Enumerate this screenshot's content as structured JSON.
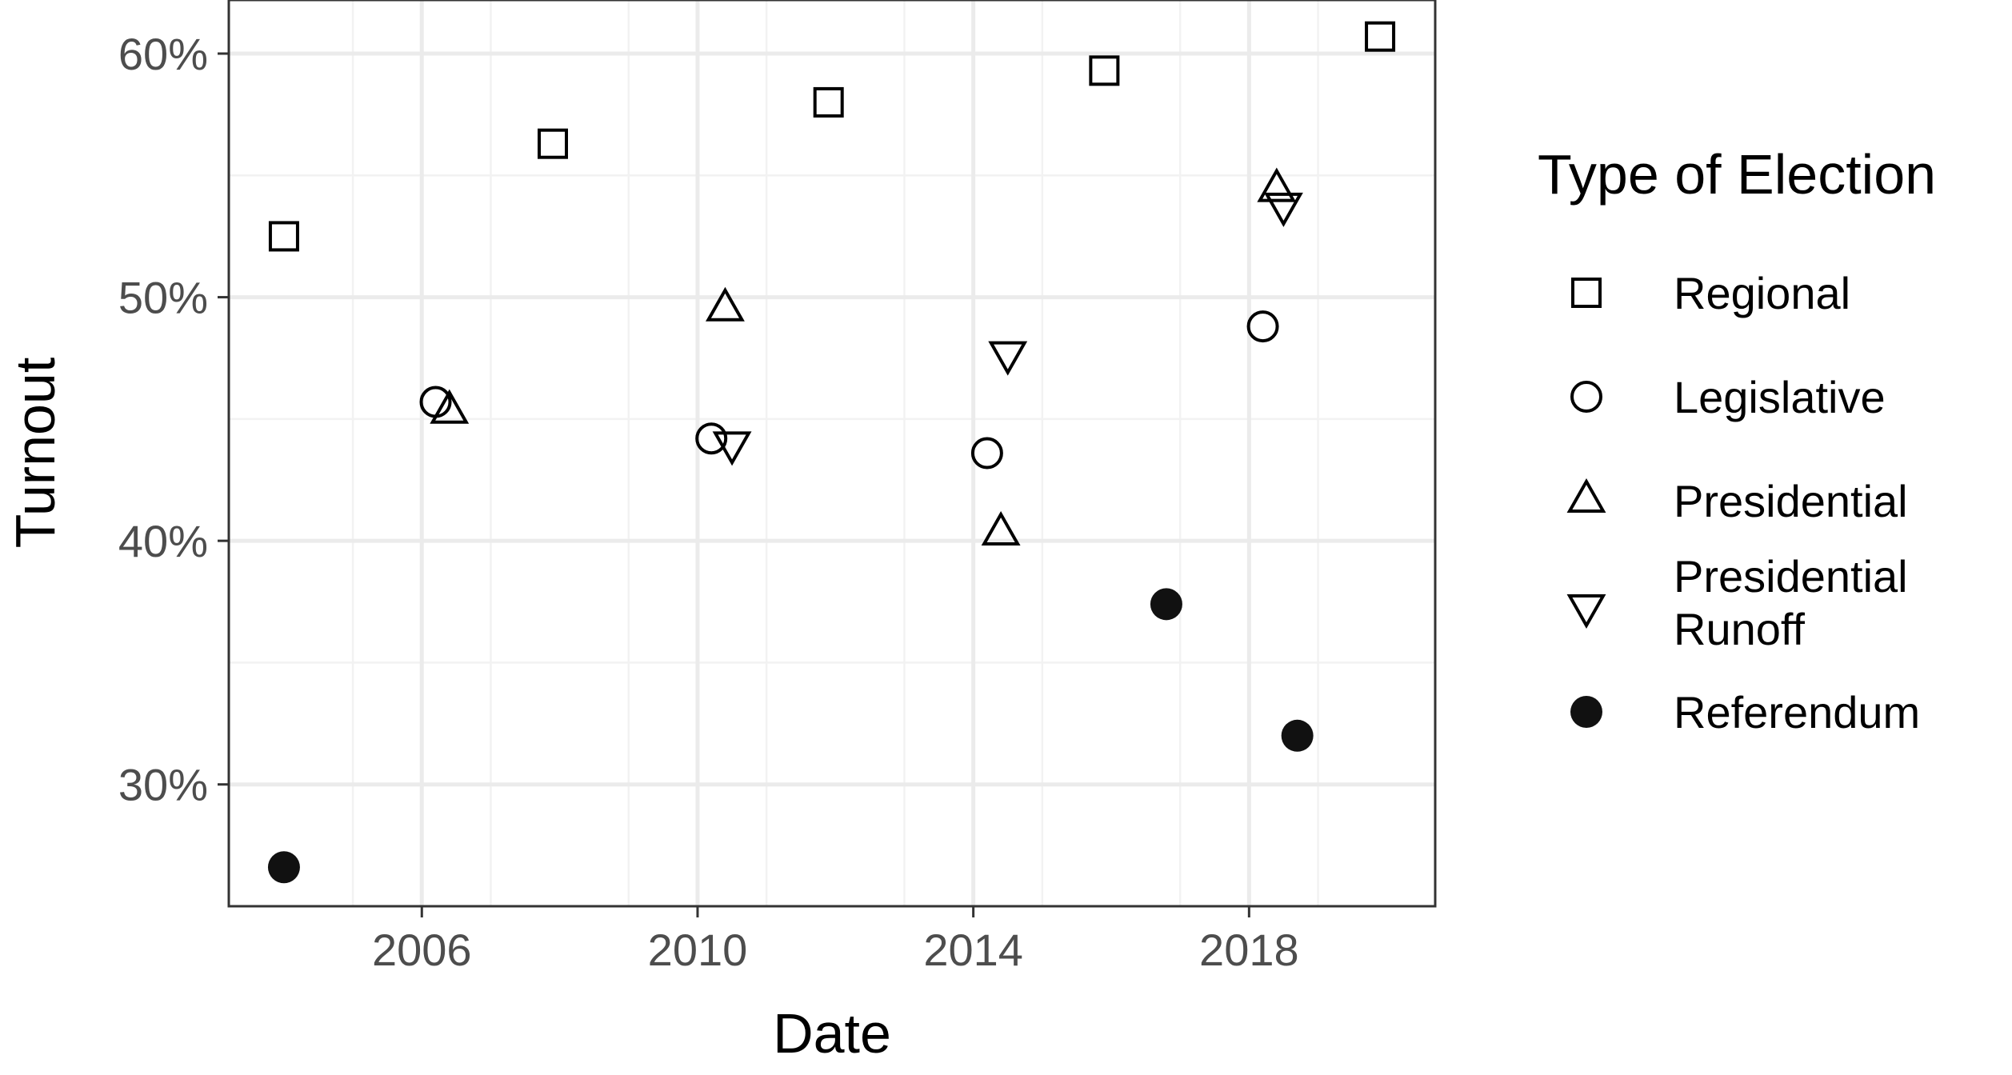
{
  "chart_data": {
    "type": "scatter",
    "xlabel": "Date",
    "ylabel": "Turnout",
    "x_ticks": [
      "2006",
      "2010",
      "2014",
      "2018"
    ],
    "y_ticks": [
      "30%",
      "40%",
      "50%",
      "60%"
    ],
    "xlim": [
      2003.2,
      2020.7
    ],
    "ylim": [
      25,
      62.2
    ],
    "grid": true,
    "legend": {
      "title": "Type of Election",
      "placement": "right",
      "entries": [
        {
          "key": "regional",
          "label": "Regional",
          "shape": "square"
        },
        {
          "key": "legislative",
          "label": "Legislative",
          "shape": "circle"
        },
        {
          "key": "presidential",
          "label": "Presidential",
          "shape": "triangle-up"
        },
        {
          "key": "runoff",
          "label": "Presidential Runoff",
          "label_lines": [
            "Presidential",
            "Runoff"
          ],
          "shape": "triangle-down"
        },
        {
          "key": "referendum",
          "label": "Referendum",
          "shape": "filled-circle"
        }
      ]
    },
    "series": [
      {
        "key": "regional",
        "name": "Regional",
        "points": [
          {
            "x": 2004.0,
            "y": 52.5
          },
          {
            "x": 2007.9,
            "y": 56.3
          },
          {
            "x": 2011.9,
            "y": 58.0
          },
          {
            "x": 2015.9,
            "y": 59.3
          },
          {
            "x": 2019.9,
            "y": 60.7
          }
        ]
      },
      {
        "key": "legislative",
        "name": "Legislative",
        "points": [
          {
            "x": 2006.2,
            "y": 45.7
          },
          {
            "x": 2010.2,
            "y": 44.2
          },
          {
            "x": 2014.2,
            "y": 43.6
          },
          {
            "x": 2018.2,
            "y": 48.8
          }
        ]
      },
      {
        "key": "presidential",
        "name": "Presidential",
        "points": [
          {
            "x": 2006.4,
            "y": 45.3
          },
          {
            "x": 2010.4,
            "y": 49.5
          },
          {
            "x": 2014.4,
            "y": 40.3
          },
          {
            "x": 2018.4,
            "y": 54.4
          }
        ]
      },
      {
        "key": "runoff",
        "name": "Presidential Runoff",
        "points": [
          {
            "x": 2010.5,
            "y": 44.0
          },
          {
            "x": 2014.5,
            "y": 47.7
          },
          {
            "x": 2018.5,
            "y": 53.8
          }
        ]
      },
      {
        "key": "referendum",
        "name": "Referendum",
        "points": [
          {
            "x": 2004.0,
            "y": 26.6
          },
          {
            "x": 2016.8,
            "y": 37.4
          },
          {
            "x": 2018.7,
            "y": 32.0
          }
        ]
      }
    ]
  }
}
